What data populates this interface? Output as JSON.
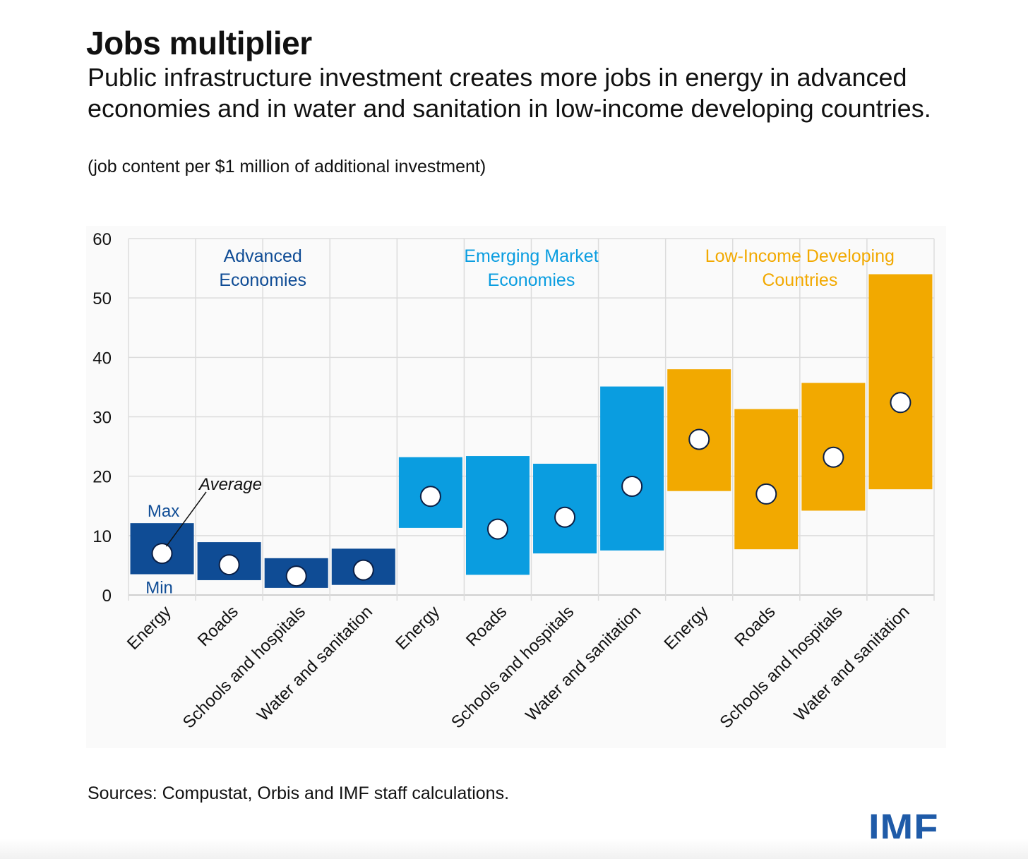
{
  "title": "Jobs multiplier",
  "subtitle": "Public infrastructure investment creates more jobs in energy in advanced economies and in water and sanitation in low-income developing countries.",
  "note": "(job content per $1 million of additional investment)",
  "source": "Sources: Compustat, Orbis and IMF staff calculations.",
  "logo": "IMF",
  "chart_data": {
    "type": "bar",
    "subtype": "floating-range with average marker",
    "ylim": [
      0,
      60
    ],
    "yticks": [
      0,
      10,
      20,
      30,
      40,
      50,
      60
    ],
    "grid": true,
    "groups": [
      {
        "name": [
          "Advanced",
          "Economies"
        ],
        "color": "#0f4c95",
        "categories": [
          "Energy",
          "Roads",
          "Schools and hospitals",
          "Water and sanitation"
        ],
        "min": [
          3.5,
          2.5,
          1.2,
          1.7
        ],
        "max": [
          12.1,
          8.9,
          6.2,
          7.8
        ],
        "average": [
          7.0,
          5.1,
          3.2,
          4.2
        ]
      },
      {
        "name": [
          "Emerging Market",
          "Economies"
        ],
        "color": "#0a9de0",
        "categories": [
          "Energy",
          "Roads",
          "Schools and hospitals",
          "Water and sanitation"
        ],
        "min": [
          11.3,
          3.4,
          7.0,
          7.5
        ],
        "max": [
          23.2,
          23.4,
          22.1,
          35.1
        ],
        "average": [
          16.6,
          11.1,
          13.1,
          18.3
        ]
      },
      {
        "name": [
          "Low-Income Developing",
          "Countries"
        ],
        "color": "#f2a900",
        "categories": [
          "Energy",
          "Roads",
          "Schools and hospitals",
          "Water and sanitation"
        ],
        "min": [
          17.5,
          7.7,
          14.2,
          17.8
        ],
        "max": [
          38.0,
          31.3,
          35.7,
          54.0
        ],
        "average": [
          26.2,
          17.0,
          23.2,
          32.4
        ]
      }
    ],
    "annotations": {
      "max_label": "Max",
      "min_label": "Min",
      "average_label": "Average"
    }
  }
}
